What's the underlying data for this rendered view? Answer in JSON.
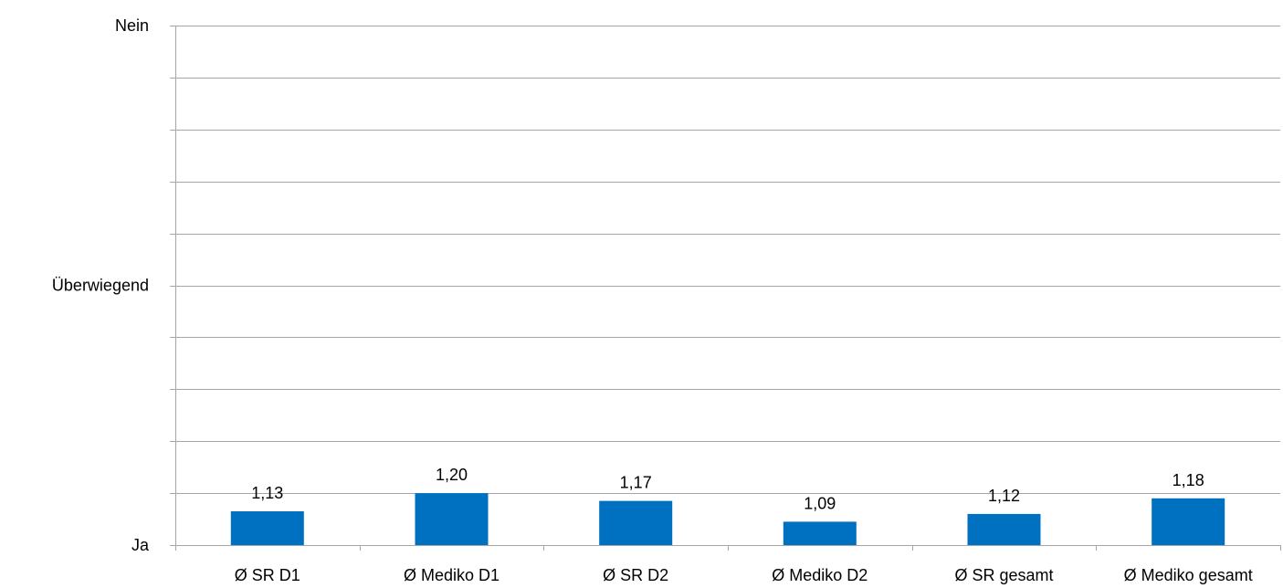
{
  "chart_data": {
    "type": "bar",
    "categories": [
      "Ø SR D1",
      "Ø Mediko D1",
      "Ø SR D2",
      "Ø Mediko D2",
      "Ø SR gesamt",
      "Ø Mediko gesamt"
    ],
    "values": [
      1.13,
      1.2,
      1.17,
      1.09,
      1.12,
      1.18
    ],
    "value_labels": [
      "1,13",
      "1,20",
      "1,17",
      "1,09",
      "1,12",
      "1,18"
    ],
    "ylim": [
      1,
      3
    ],
    "y_step": 0.2,
    "y_tick_labels": [
      {
        "value": 1,
        "label": "Ja"
      },
      {
        "value": 2,
        "label": "Überwiegend"
      },
      {
        "value": 3,
        "label": "Nein"
      }
    ],
    "grid": true,
    "bar_color": "#0070c0",
    "grid_color": "#a6a6a6"
  }
}
